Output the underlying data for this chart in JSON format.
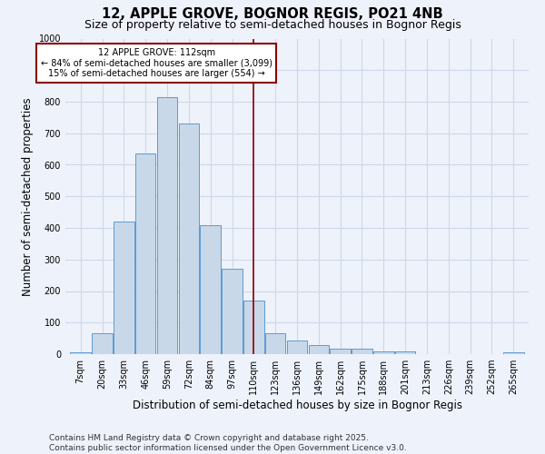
{
  "title": "12, APPLE GROVE, BOGNOR REGIS, PO21 4NB",
  "subtitle": "Size of property relative to semi-detached houses in Bognor Regis",
  "xlabel": "Distribution of semi-detached houses by size in Bognor Regis",
  "ylabel": "Number of semi-detached properties",
  "footnote": "Contains HM Land Registry data © Crown copyright and database right 2025.\nContains public sector information licensed under the Open Government Licence v3.0.",
  "categories": [
    "7sqm",
    "20sqm",
    "33sqm",
    "46sqm",
    "59sqm",
    "72sqm",
    "84sqm",
    "97sqm",
    "110sqm",
    "123sqm",
    "136sqm",
    "149sqm",
    "162sqm",
    "175sqm",
    "188sqm",
    "201sqm",
    "213sqm",
    "226sqm",
    "239sqm",
    "252sqm",
    "265sqm"
  ],
  "values": [
    7,
    65,
    420,
    635,
    815,
    730,
    410,
    270,
    170,
    65,
    42,
    30,
    18,
    18,
    10,
    10,
    0,
    0,
    0,
    0,
    5
  ],
  "bar_color": "#c8d8e8",
  "bar_edge_color": "#5b9bd5",
  "vline_x_index": 8,
  "vline_color": "#8b0000",
  "annotation_title": "12 APPLE GROVE: 112sqm",
  "annotation_line2": "← 84% of semi-detached houses are smaller (3,099)",
  "annotation_line3": "15% of semi-detached houses are larger (554) →",
  "annotation_box_color": "#8b0000",
  "annotation_bg_color": "#ffffff",
  "ylim": [
    0,
    1000
  ],
  "yticks": [
    0,
    100,
    200,
    300,
    400,
    500,
    600,
    700,
    800,
    900,
    1000
  ],
  "grid_color": "#cdd8eb",
  "background_color": "#eef2fa",
  "title_fontsize": 10.5,
  "subtitle_fontsize": 9,
  "tick_fontsize": 7,
  "label_fontsize": 8.5,
  "footnote_fontsize": 6.5
}
